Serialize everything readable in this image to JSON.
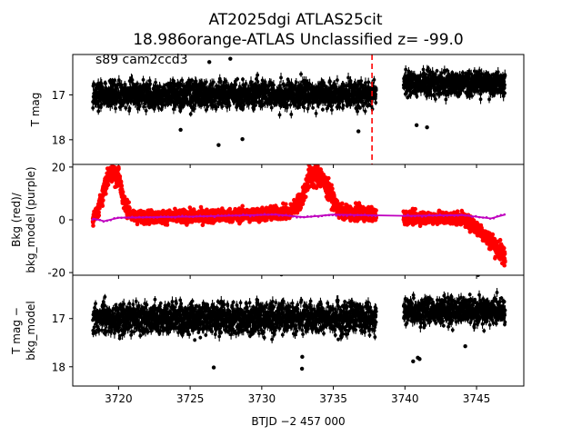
{
  "title": {
    "line1": "AT2025dgi  ATLAS25cit",
    "line2": "18.986orange-ATLAS Unclassified z= -99.0"
  },
  "colors": {
    "data": "#000000",
    "bkg": "#ff0000",
    "model": "#bf00bf",
    "marker_line": "#ff0000"
  },
  "chart_data": [
    {
      "type": "scatter",
      "panel": "top",
      "annotation": "s89 cam2ccd3",
      "ylabel": "T mag",
      "ylim": [
        18.55,
        16.1
      ],
      "yticks": [
        17,
        18
      ],
      "xlim": [
        3716.8,
        3748.3
      ],
      "marker_x": 3737.7,
      "series": [
        {
          "segments": [
            {
              "x0": 3718.2,
              "x1": 3738.0,
              "center": 17.0,
              "spread": 0.28
            },
            {
              "x0": 3739.9,
              "x1": 3747.0,
              "center": 16.75,
              "spread": 0.25
            }
          ]
        }
      ]
    },
    {
      "type": "scatter",
      "panel": "middle",
      "ylabel": "Bkg (red)/\nbkg_model (purple)",
      "ylim": [
        -21,
        21
      ],
      "yticks": [
        -20,
        0,
        20
      ],
      "xlim": [
        3716.8,
        3748.3
      ],
      "series": [
        {
          "points": [
            [
              3718.2,
              0
            ],
            [
              3718.6,
              4
            ],
            [
              3719.0,
              12
            ],
            [
              3719.4,
              19
            ],
            [
              3720.0,
              17
            ],
            [
              3720.4,
              6
            ],
            [
              3721.0,
              1
            ],
            [
              3725.0,
              1.2
            ],
            [
              3730.0,
              2
            ],
            [
              3732.0,
              3
            ],
            [
              3732.8,
              8
            ],
            [
              3733.3,
              16
            ],
            [
              3734.0,
              17
            ],
            [
              3734.8,
              10
            ],
            [
              3735.4,
              3
            ],
            [
              3738.0,
              2
            ],
            [
              3739.9,
              1
            ],
            [
              3744.0,
              0.5
            ],
            [
              3745.0,
              -3
            ],
            [
              3746.0,
              -8
            ],
            [
              3747.0,
              -14
            ]
          ]
        },
        {
          "points": [
            [
              3718.2,
              0.5
            ],
            [
              3719.0,
              -0.5
            ],
            [
              3720.0,
              0.8
            ],
            [
              3725.0,
              1.2
            ],
            [
              3731.0,
              2.0
            ],
            [
              3733.0,
              1.0
            ],
            [
              3735.0,
              2.0
            ],
            [
              3737.0,
              1.8
            ],
            [
              3740.0,
              1.5
            ],
            [
              3744.0,
              1.8
            ],
            [
              3746.0,
              0.5
            ],
            [
              3747.0,
              2.0
            ]
          ]
        }
      ]
    },
    {
      "type": "scatter",
      "panel": "bottom",
      "ylabel": "T mag −\nbkg_model",
      "ylim": [
        18.4,
        16.1
      ],
      "yticks": [
        17,
        18
      ],
      "xlim": [
        3716.8,
        3748.3
      ],
      "xlabel": "BTJD −2 457 000",
      "xticks": [
        3720,
        3725,
        3730,
        3735,
        3740,
        3745
      ],
      "series": [
        {
          "segments": [
            {
              "x0": 3718.2,
              "x1": 3738.0,
              "center": 17.0,
              "spread": 0.3
            },
            {
              "x0": 3739.9,
              "x1": 3747.0,
              "center": 16.85,
              "spread": 0.27
            }
          ]
        }
      ]
    }
  ]
}
